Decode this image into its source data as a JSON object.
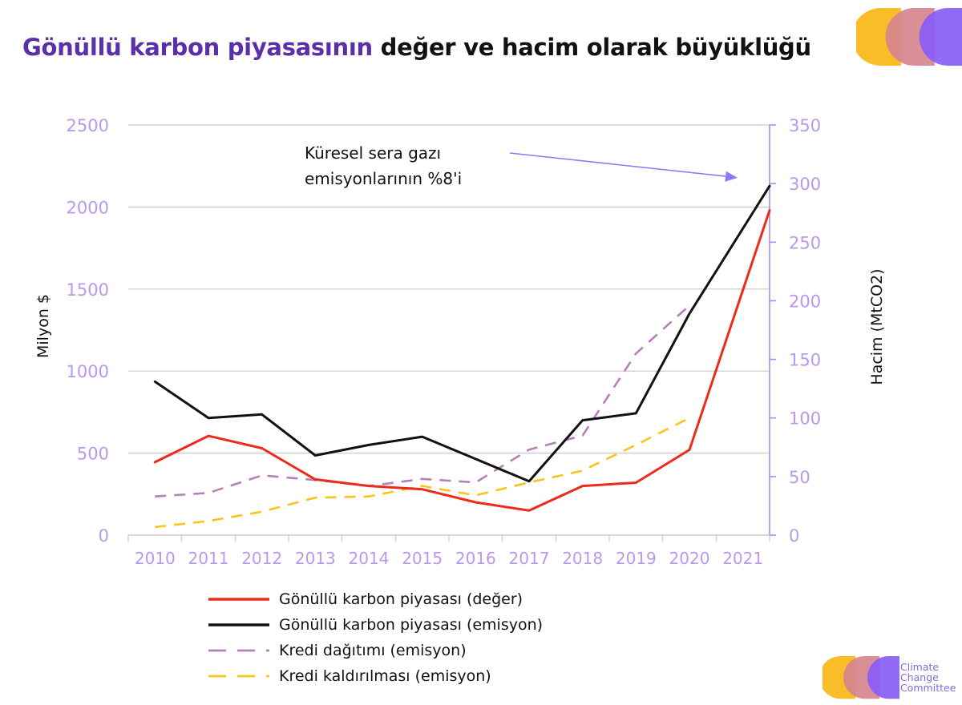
{
  "title": {
    "highlight": "Gönüllü karbon piyasasının",
    "rest": " değer ve hacim olarak büyüklüğü"
  },
  "colors": {
    "title_highlight": "#5b2fa8",
    "axis_tick": "#b999ee",
    "right_axis": "#a98bf0",
    "grid": "#c9c9c9",
    "logo": [
      "#f8b915",
      "#d7868d",
      "#8a5df5"
    ],
    "annotation_arrow": "#8e79f2"
  },
  "chart_data": {
    "type": "line",
    "x": [
      "2010",
      "2011",
      "2012",
      "2013",
      "2014",
      "2015",
      "2016",
      "2017",
      "2018",
      "2019",
      "2020",
      "2021"
    ],
    "y_left": {
      "label": "Milyon $",
      "range": [
        0,
        2500
      ],
      "ticks": [
        "0",
        "500",
        "1000",
        "1500",
        "2000",
        "2500"
      ]
    },
    "y_right": {
      "label": "Hacim (MtCO2)",
      "range": [
        0,
        350
      ],
      "ticks": [
        "0",
        "50",
        "100",
        "150",
        "200",
        "250",
        "300",
        "350"
      ]
    },
    "grid": true,
    "legend_position": "bottom",
    "series": [
      {
        "name": "Gönüllü karbon piyasası (değer)",
        "axis": "left",
        "color": "#ee2a1b",
        "dash": "solid",
        "x": [
          2010,
          2011,
          2012,
          2013,
          2014,
          2015,
          2016,
          2017,
          2018,
          2019,
          2020,
          2021.5
        ],
        "values": [
          445,
          605,
          530,
          340,
          300,
          280,
          200,
          150,
          300,
          320,
          520,
          1980
        ]
      },
      {
        "name": "Gönüllü karbon piyasası (emisyon)",
        "axis": "right",
        "color": "#111111",
        "dash": "solid",
        "x": [
          2010,
          2011,
          2012,
          2013,
          2014,
          2015,
          2016,
          2017,
          2018,
          2019,
          2020,
          2021.5
        ],
        "values": [
          131,
          100,
          103,
          68,
          77,
          84,
          65,
          46,
          98,
          104,
          189,
          298
        ]
      },
      {
        "name": "Kredi dağıtımı (emisyon)",
        "axis": "right",
        "color": "#b57fba",
        "dash": "dashed",
        "x": [
          2010,
          2011,
          2012,
          2013,
          2014,
          2015,
          2016,
          2017,
          2018,
          2019,
          2020
        ],
        "values": [
          33,
          36,
          51,
          47,
          42,
          48,
          45,
          73,
          85,
          155,
          196
        ]
      },
      {
        "name": "Kredi kaldırılması (emisyon)",
        "axis": "right",
        "color": "#f7c518",
        "dash": "dashed",
        "x": [
          2010,
          2011,
          2012,
          2013,
          2014,
          2015,
          2016,
          2017,
          2018,
          2019,
          2020
        ],
        "values": [
          7,
          12,
          20,
          32,
          33,
          42,
          34,
          45,
          55,
          77,
          100
        ]
      }
    ],
    "annotation": {
      "text_lines": [
        "Küresel sera gazı",
        "emisyonlarının %8'i"
      ],
      "points_to": {
        "x": 2020.9,
        "axis": "right",
        "value": 305
      }
    }
  },
  "footer_logo": {
    "text_lines": [
      "Climate",
      "Change",
      "Committee"
    ]
  }
}
